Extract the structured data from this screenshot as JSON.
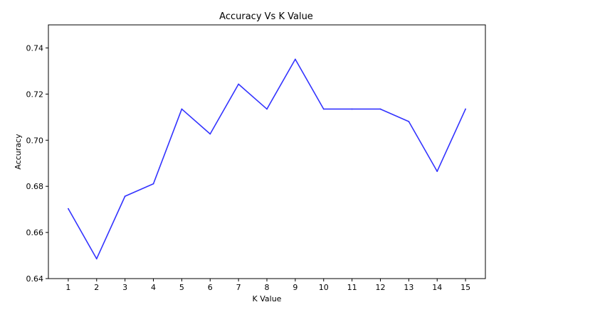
{
  "chart_data": {
    "type": "line",
    "title": "Accuracy Vs K Value",
    "xlabel": "K Value",
    "ylabel": "Accuracy",
    "x": [
      1,
      2,
      3,
      4,
      5,
      6,
      7,
      8,
      9,
      10,
      11,
      12,
      13,
      14,
      15
    ],
    "series": [
      {
        "values": [
          0.6703,
          0.6486,
          0.6757,
          0.6811,
          0.7135,
          0.7027,
          0.7243,
          0.7135,
          0.7351,
          0.7135,
          0.7135,
          0.7135,
          0.7081,
          0.6865,
          0.7135
        ],
        "color": "#3333ff"
      }
    ],
    "xlim": [
      0.3,
      15.7
    ],
    "ylim": [
      0.64,
      0.75
    ],
    "xticks": [
      1,
      2,
      3,
      4,
      5,
      6,
      7,
      8,
      9,
      10,
      11,
      12,
      13,
      14,
      15
    ],
    "yticks": [
      0.64,
      0.66,
      0.68,
      0.7,
      0.72,
      0.74
    ],
    "ytick_labels": [
      "0.64",
      "0.66",
      "0.68",
      "0.70",
      "0.72",
      "0.74"
    ],
    "grid": false,
    "legend": "none"
  }
}
